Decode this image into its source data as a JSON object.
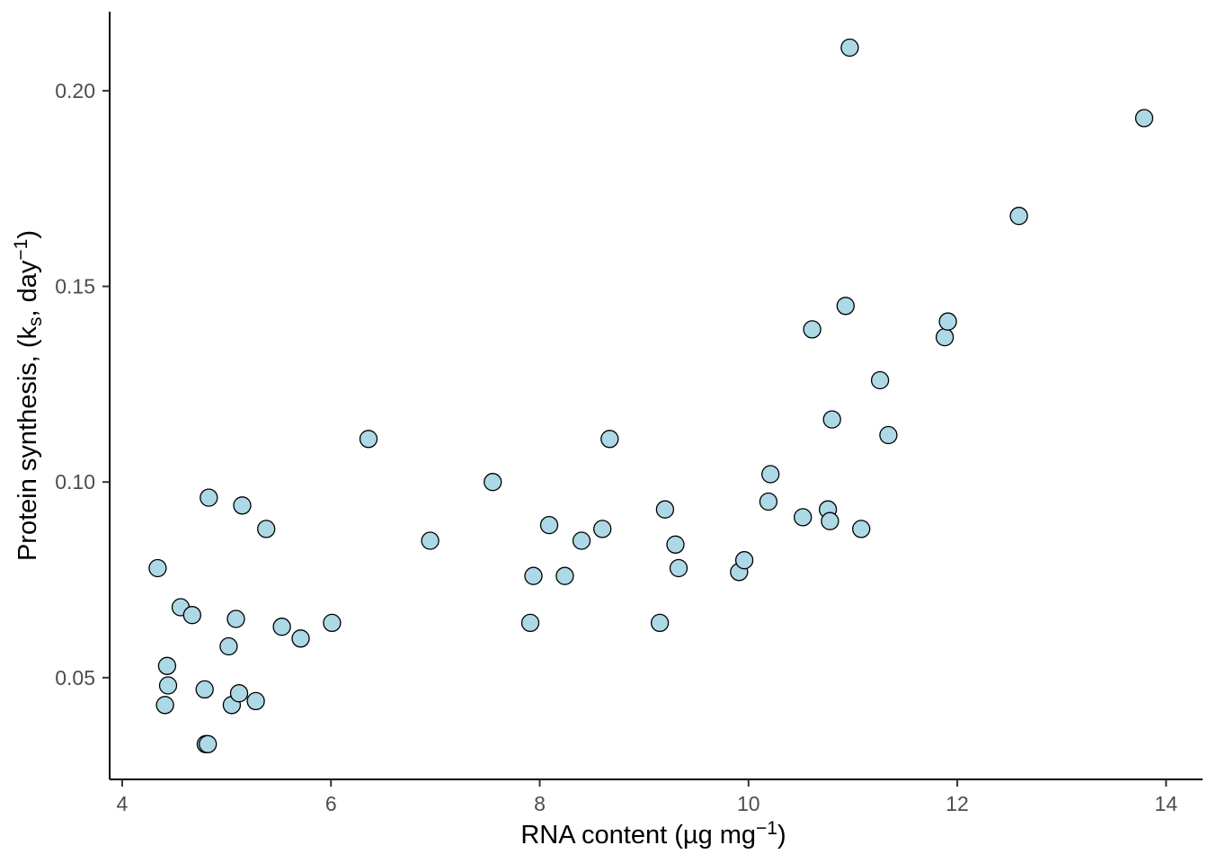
{
  "figure": {
    "background": "#FFFFFF",
    "axis_line_color": "#000000",
    "tick_mark_color": "#333333",
    "tick_label_color": "#4D4D4D",
    "axis_title_color": "#000000",
    "point_fill": "#ADD8E6",
    "point_stroke": "#000000"
  },
  "chart_data": {
    "type": "scatter",
    "title": "",
    "xlabel": "RNA content (µg mg−1)",
    "ylabel": "Protein synthesis, (ks, day−1)",
    "xlabel_segments": [
      {
        "text": "RNA content (µg mg"
      },
      {
        "text": "−1",
        "style": "sup"
      },
      {
        "text": ")"
      }
    ],
    "ylabel_segments": [
      {
        "text": "Protein synthesis, (k"
      },
      {
        "text": "s",
        "style": "sub"
      },
      {
        "text": ", day"
      },
      {
        "text": "−1",
        "style": "sup"
      },
      {
        "text": ")"
      }
    ],
    "x_ticks": [
      4,
      6,
      8,
      10,
      12,
      14
    ],
    "x_tick_labels": [
      "4",
      "6",
      "8",
      "10",
      "12",
      "14"
    ],
    "y_ticks": [
      0.05,
      0.1,
      0.15,
      0.2
    ],
    "y_tick_labels": [
      "0.05",
      "0.10",
      "0.15",
      "0.20"
    ],
    "xlim": [
      3.88,
      14.35
    ],
    "ylim": [
      0.024,
      0.2202
    ],
    "grid": false,
    "legend": "none",
    "points": [
      [
        4.34,
        0.078
      ],
      [
        4.41,
        0.043
      ],
      [
        4.43,
        0.053
      ],
      [
        4.44,
        0.048
      ],
      [
        4.56,
        0.068
      ],
      [
        4.67,
        0.066
      ],
      [
        4.79,
        0.047
      ],
      [
        4.8,
        0.033
      ],
      [
        4.82,
        0.033
      ],
      [
        4.83,
        0.096
      ],
      [
        5.02,
        0.058
      ],
      [
        5.05,
        0.043
      ],
      [
        5.09,
        0.065
      ],
      [
        5.12,
        0.046
      ],
      [
        5.15,
        0.094
      ],
      [
        5.28,
        0.044
      ],
      [
        5.38,
        0.088
      ],
      [
        5.53,
        0.063
      ],
      [
        5.71,
        0.06
      ],
      [
        6.01,
        0.064
      ],
      [
        6.36,
        0.111
      ],
      [
        6.95,
        0.085
      ],
      [
        7.55,
        0.1
      ],
      [
        7.91,
        0.064
      ],
      [
        7.94,
        0.076
      ],
      [
        8.09,
        0.089
      ],
      [
        8.24,
        0.076
      ],
      [
        8.4,
        0.085
      ],
      [
        8.6,
        0.088
      ],
      [
        8.67,
        0.111
      ],
      [
        9.15,
        0.064
      ],
      [
        9.2,
        0.093
      ],
      [
        9.3,
        0.084
      ],
      [
        9.33,
        0.078
      ],
      [
        9.91,
        0.077
      ],
      [
        9.96,
        0.08
      ],
      [
        10.19,
        0.095
      ],
      [
        10.21,
        0.102
      ],
      [
        10.52,
        0.091
      ],
      [
        10.61,
        0.139
      ],
      [
        10.76,
        0.093
      ],
      [
        10.78,
        0.09
      ],
      [
        10.8,
        0.116
      ],
      [
        10.93,
        0.145
      ],
      [
        10.97,
        0.211
      ],
      [
        11.08,
        0.088
      ],
      [
        11.26,
        0.126
      ],
      [
        11.34,
        0.112
      ],
      [
        11.88,
        0.137
      ],
      [
        11.91,
        0.141
      ],
      [
        12.59,
        0.168
      ],
      [
        13.79,
        0.193
      ]
    ],
    "point_radius_px": 9.5
  }
}
